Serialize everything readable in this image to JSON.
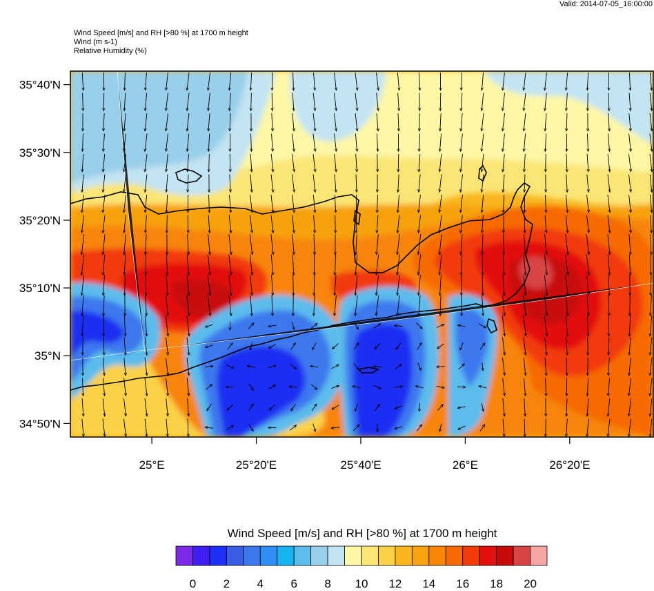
{
  "valid_label": "Valid: 2014-07-05_16:00:00",
  "header": {
    "line1": "Wind Speed [m/s] and RH [>80 %] at 1700 m height",
    "line2": "Wind   (m s-1)",
    "line3": "Relative Humidity   (%)"
  },
  "axes": {
    "lat_ticks": [
      {
        "label": "35°40'N",
        "value": 35.6667
      },
      {
        "label": "35°30'N",
        "value": 35.5
      },
      {
        "label": "35°20'N",
        "value": 35.3333
      },
      {
        "label": "35°10'N",
        "value": 35.1667
      },
      {
        "label": "35°N",
        "value": 35.0
      },
      {
        "label": "34°50'N",
        "value": 34.8333
      }
    ],
    "lon_ticks": [
      {
        "label": "25°E",
        "value": 25.0
      },
      {
        "label": "25°20'E",
        "value": 25.3333
      },
      {
        "label": "25°40'E",
        "value": 25.6667
      },
      {
        "label": "26°E",
        "value": 26.0
      },
      {
        "label": "26°20'E",
        "value": 26.3333
      }
    ],
    "lon_range": [
      24.74,
      26.6
    ],
    "lat_range": [
      34.8,
      35.7
    ]
  },
  "colorbar": {
    "title": "Wind Speed [m/s] and RH [>80 %] at 1700 m height",
    "colors": [
      "#7b2be8",
      "#3f1ef0",
      "#1c2ff2",
      "#3b5ce6",
      "#3c78ee",
      "#2f8ff5",
      "#18b2f3",
      "#5cbcec",
      "#99cfea",
      "#c3e4f2",
      "#fdf7a6",
      "#fbe574",
      "#fbd147",
      "#f9b51e",
      "#f7a20e",
      "#f78508",
      "#f66a06",
      "#f23b09",
      "#e30e0e",
      "#c70b0b",
      "#d94444",
      "#f6a5a5"
    ],
    "labels": [
      "0",
      "2",
      "4",
      "6",
      "8",
      "10",
      "12",
      "14",
      "16",
      "18",
      "20"
    ]
  },
  "wind": {
    "dominant_direction": "southward"
  }
}
